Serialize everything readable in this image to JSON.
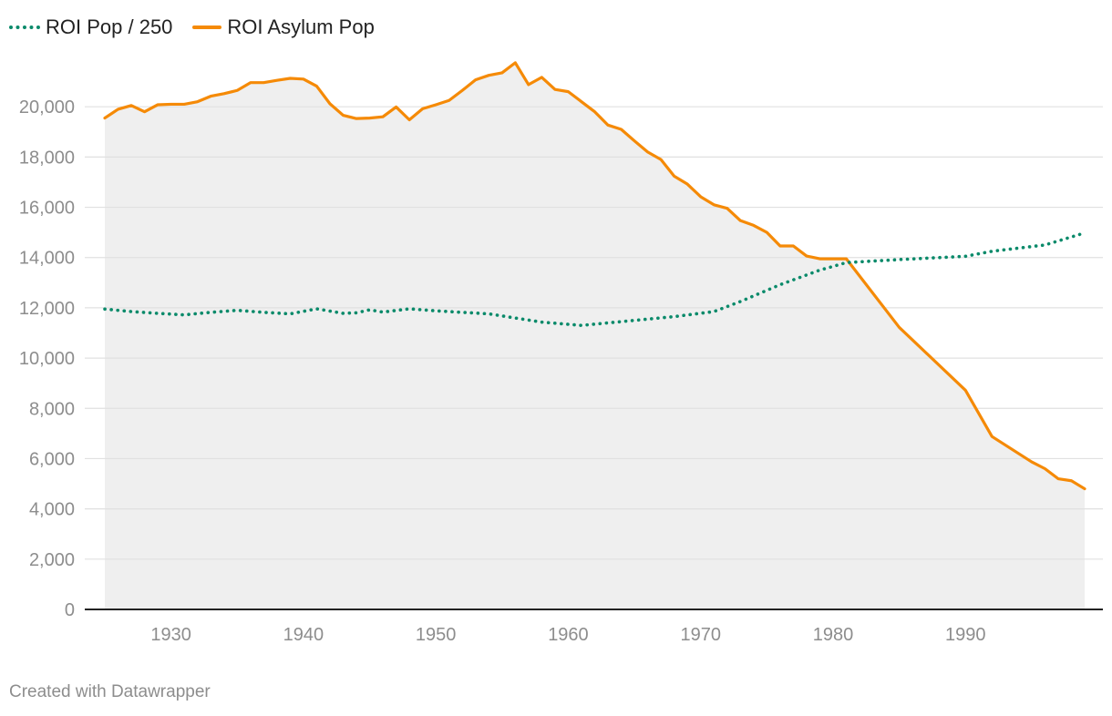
{
  "colors": {
    "roi_pop": "#0a8a6a",
    "asylum_pop": "#f58a07",
    "area_fill": "#efefef",
    "gridline": "#e0e0e0",
    "axis": "#222222",
    "tick_text": "#8d8d8d"
  },
  "legend": {
    "items": [
      {
        "label": "ROI Pop / 250",
        "style": "dotted"
      },
      {
        "label": "ROI Asylum Pop",
        "style": "solid"
      }
    ]
  },
  "footer": {
    "credit": "Created with Datawrapper"
  },
  "chart_data": {
    "type": "line",
    "title": "",
    "xlabel": "",
    "ylabel": "",
    "xlim": [
      1925,
      1999
    ],
    "ylim": [
      0,
      22000
    ],
    "x_ticks": [
      1930,
      1940,
      1950,
      1960,
      1970,
      1980,
      1990
    ],
    "x_tick_labels": [
      "1930",
      "1940",
      "1950",
      "1960",
      "1970",
      "1980",
      "1990"
    ],
    "y_ticks": [
      0,
      2000,
      4000,
      6000,
      8000,
      10000,
      12000,
      14000,
      16000,
      18000,
      20000
    ],
    "y_tick_labels": [
      "0",
      "2,000",
      "4,000",
      "6,000",
      "8,000",
      "10,000",
      "12,000",
      "14,000",
      "16,000",
      "18,000",
      "20,000"
    ],
    "grid": true,
    "legend_position": "top-left",
    "series": [
      {
        "name": "ROI Pop / 250",
        "style": "dotted",
        "area_fill": false,
        "points": [
          [
            1925,
            11950
          ],
          [
            1927,
            11850
          ],
          [
            1929,
            11780
          ],
          [
            1931,
            11720
          ],
          [
            1933,
            11820
          ],
          [
            1935,
            11900
          ],
          [
            1937,
            11820
          ],
          [
            1939,
            11760
          ],
          [
            1941,
            11960
          ],
          [
            1943,
            11780
          ],
          [
            1944,
            11800
          ],
          [
            1945,
            11920
          ],
          [
            1946,
            11830
          ],
          [
            1948,
            11960
          ],
          [
            1950,
            11880
          ],
          [
            1954,
            11760
          ],
          [
            1958,
            11430
          ],
          [
            1961,
            11300
          ],
          [
            1964,
            11450
          ],
          [
            1968,
            11650
          ],
          [
            1971,
            11850
          ],
          [
            1973,
            12250
          ],
          [
            1976,
            12920
          ],
          [
            1979,
            13500
          ],
          [
            1981,
            13800
          ],
          [
            1985,
            13920
          ],
          [
            1990,
            14050
          ],
          [
            1992,
            14250
          ],
          [
            1996,
            14500
          ],
          [
            1999,
            14980
          ]
        ]
      },
      {
        "name": "ROI Asylum Pop",
        "style": "solid",
        "area_fill": true,
        "points": [
          [
            1925,
            19550
          ],
          [
            1926,
            19900
          ],
          [
            1927,
            20050
          ],
          [
            1928,
            19800
          ],
          [
            1929,
            20080
          ],
          [
            1930,
            20100
          ],
          [
            1931,
            20100
          ],
          [
            1932,
            20200
          ],
          [
            1933,
            20420
          ],
          [
            1934,
            20520
          ],
          [
            1935,
            20650
          ],
          [
            1936,
            20960
          ],
          [
            1937,
            20960
          ],
          [
            1938,
            21050
          ],
          [
            1939,
            21130
          ],
          [
            1940,
            21100
          ],
          [
            1941,
            20820
          ],
          [
            1942,
            20120
          ],
          [
            1943,
            19660
          ],
          [
            1944,
            19530
          ],
          [
            1945,
            19550
          ],
          [
            1946,
            19600
          ],
          [
            1947,
            19990
          ],
          [
            1948,
            19480
          ],
          [
            1949,
            19920
          ],
          [
            1950,
            20080
          ],
          [
            1951,
            20250
          ],
          [
            1952,
            20650
          ],
          [
            1953,
            21070
          ],
          [
            1954,
            21250
          ],
          [
            1955,
            21350
          ],
          [
            1956,
            21750
          ],
          [
            1957,
            20880
          ],
          [
            1958,
            21170
          ],
          [
            1959,
            20690
          ],
          [
            1960,
            20600
          ],
          [
            1961,
            20200
          ],
          [
            1962,
            19800
          ],
          [
            1963,
            19270
          ],
          [
            1964,
            19100
          ],
          [
            1965,
            18640
          ],
          [
            1966,
            18200
          ],
          [
            1967,
            17900
          ],
          [
            1968,
            17240
          ],
          [
            1969,
            16920
          ],
          [
            1970,
            16420
          ],
          [
            1971,
            16100
          ],
          [
            1972,
            15960
          ],
          [
            1973,
            15470
          ],
          [
            1974,
            15280
          ],
          [
            1975,
            15000
          ],
          [
            1976,
            14460
          ],
          [
            1977,
            14460
          ],
          [
            1978,
            14060
          ],
          [
            1979,
            13950
          ],
          [
            1980,
            13950
          ],
          [
            1981,
            13950
          ],
          [
            1985,
            11220
          ],
          [
            1990,
            8720
          ],
          [
            1992,
            6880
          ],
          [
            1995,
            5870
          ],
          [
            1996,
            5600
          ],
          [
            1997,
            5200
          ],
          [
            1998,
            5120
          ],
          [
            1999,
            4800
          ]
        ]
      }
    ]
  }
}
